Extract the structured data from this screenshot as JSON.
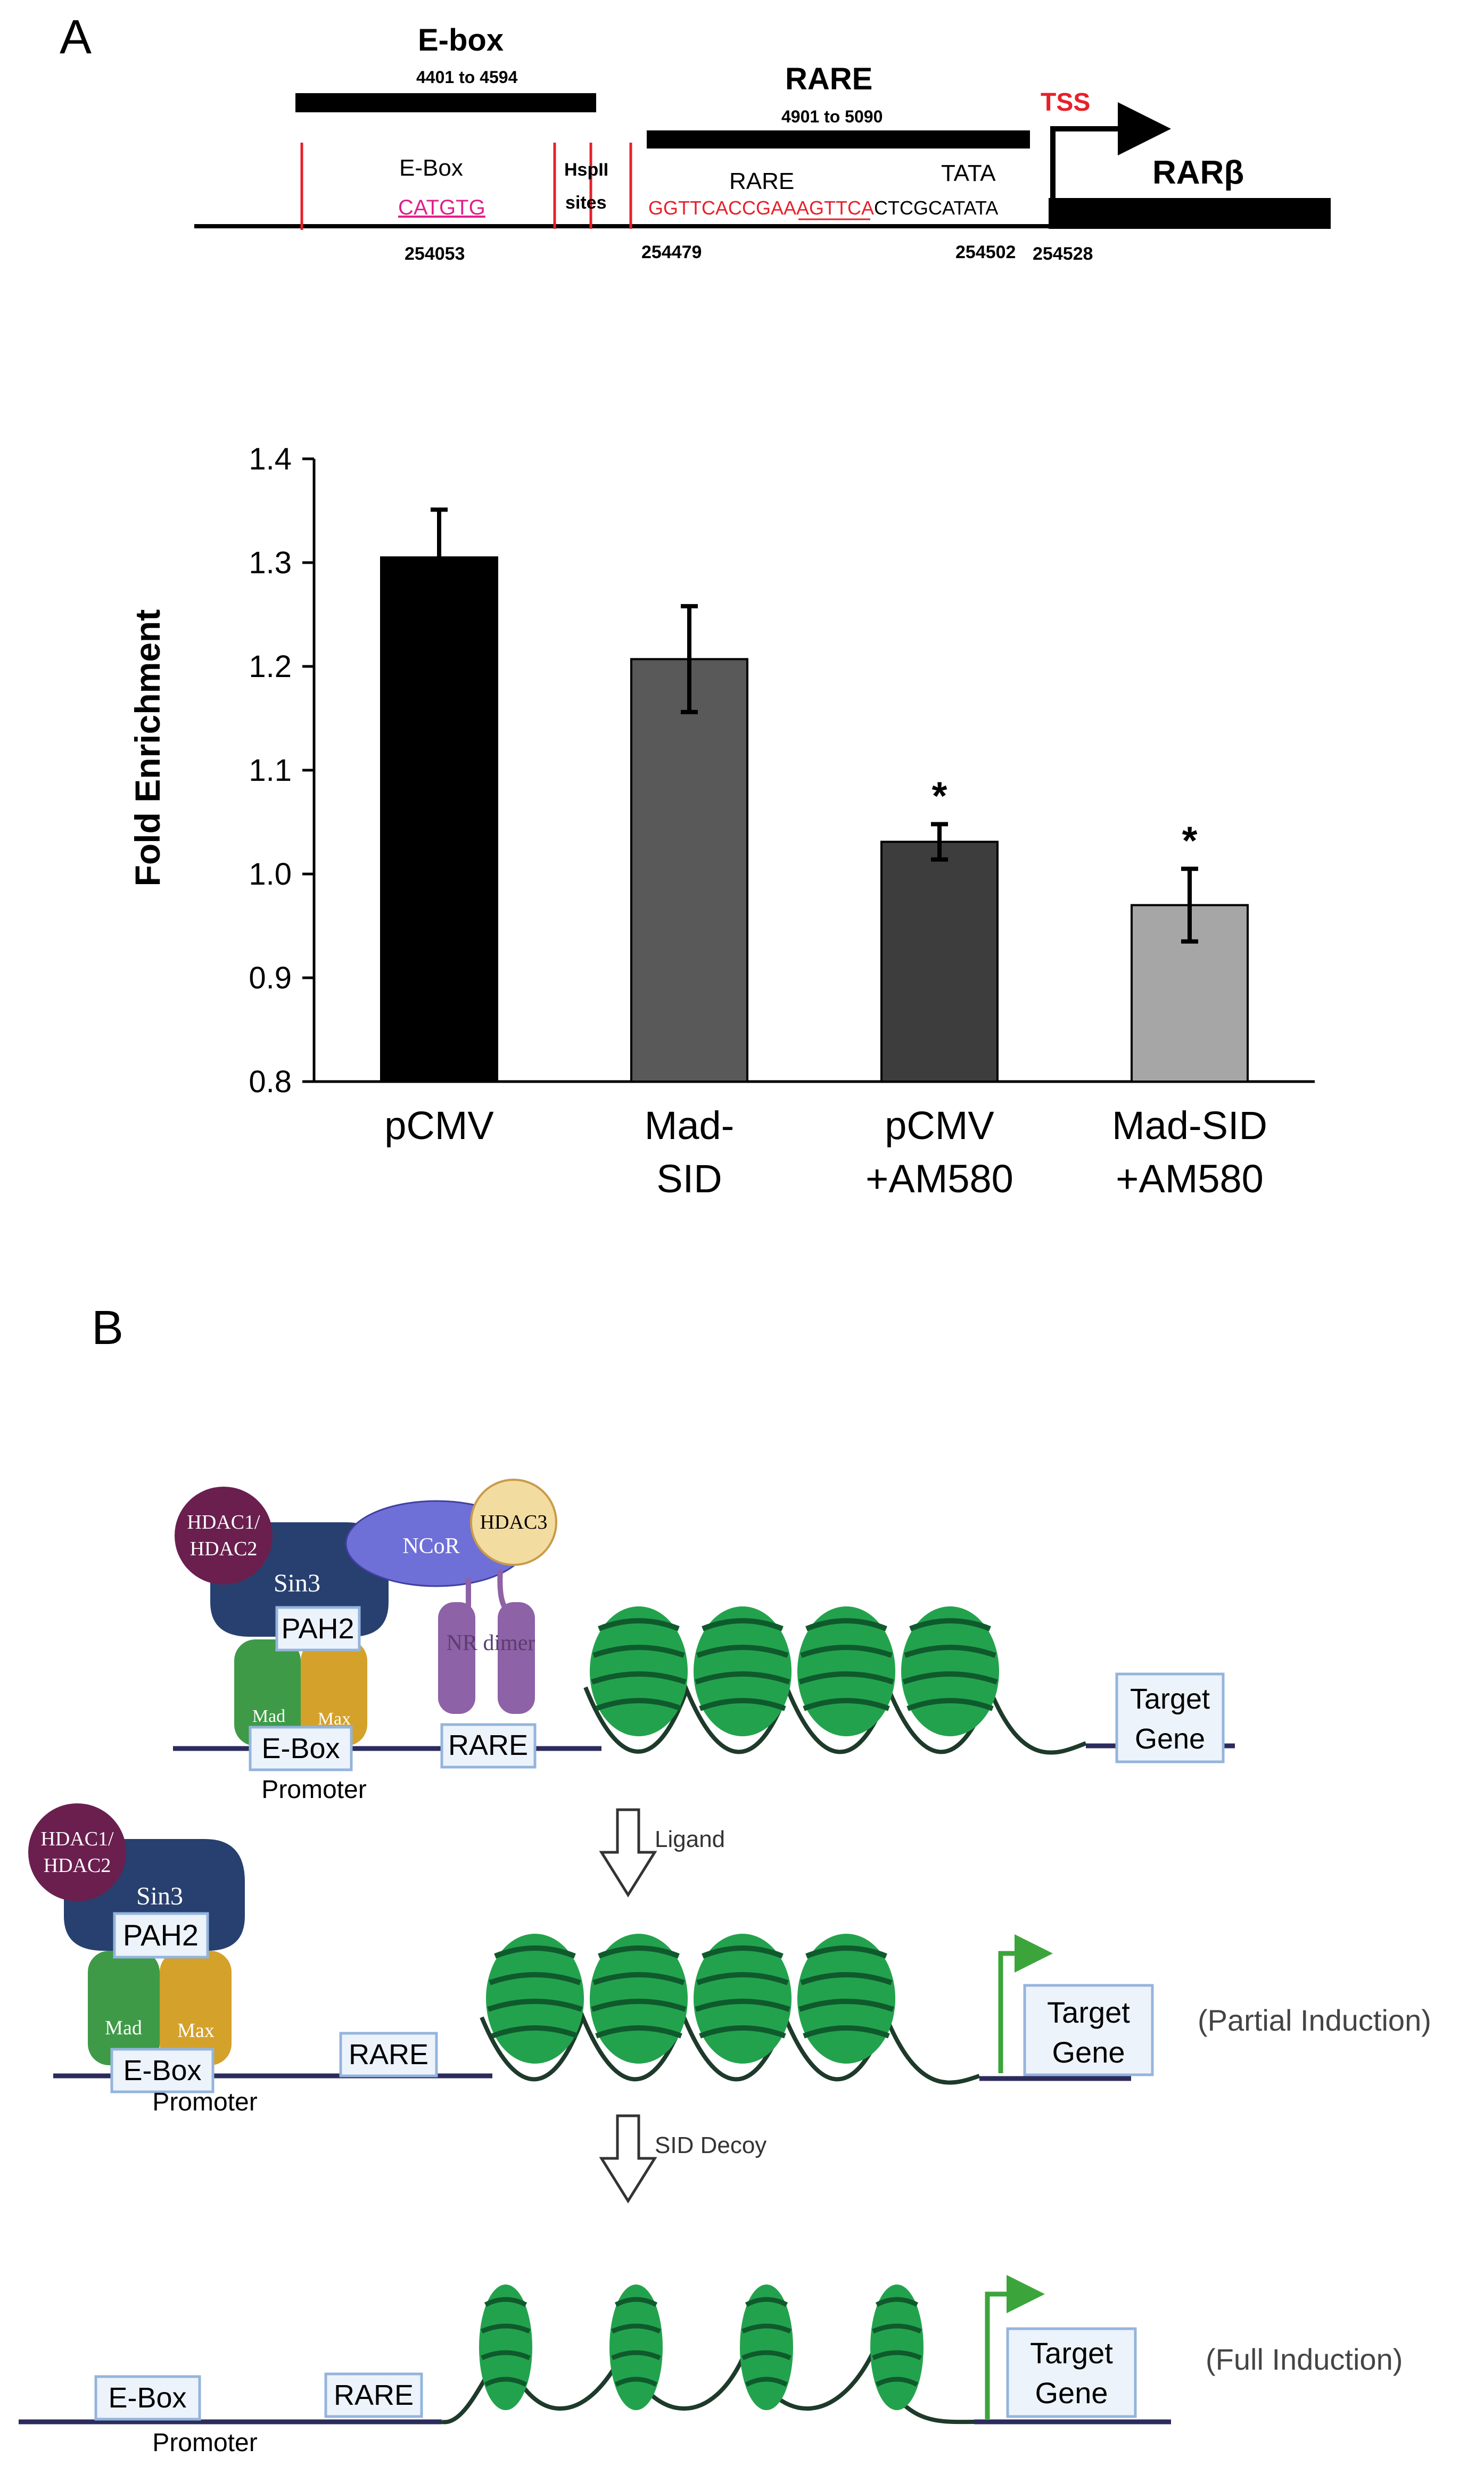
{
  "panel_a": {
    "label": "A",
    "map": {
      "ebox_region": {
        "title": "E-box",
        "range": "4401 to 4594"
      },
      "rare_region": {
        "title": "RARE",
        "range": "4901 to 5090"
      },
      "tss_label": "TSS",
      "gene_label": "RARβ",
      "ebox_site_label": "E-Box",
      "ebox_sequence": "CATGTG",
      "hspii_label_line1": "HspII",
      "hspii_label_line2": "sites",
      "rare_site_label": "RARE",
      "tata_label": "TATA",
      "rare_sequence_red": "GGTTCACCGAAAGTTCA",
      "rare_sequence_black": "CTCGCATATA",
      "positions": [
        "254053",
        "254479",
        "254502",
        "254528"
      ]
    }
  },
  "chart_data": {
    "type": "bar",
    "title": "",
    "xlabel": "",
    "ylabel": "Fold Enrichment",
    "ylim": [
      0.8,
      1.4
    ],
    "yticks": [
      "0.8",
      "0.9",
      "1.0",
      "1.1",
      "1.2",
      "1.3",
      "1.4"
    ],
    "categories": [
      {
        "line1": "pCMV",
        "line2": ""
      },
      {
        "line1": "Mad-",
        "line2": "SID"
      },
      {
        "line1": "pCMV",
        "line2": "+AM580"
      },
      {
        "line1": "Mad-SID",
        "line2": "+AM580"
      }
    ],
    "values": [
      1.305,
      1.207,
      1.031,
      0.97
    ],
    "errors": [
      0.046,
      0.051,
      0.017,
      0.035
    ],
    "significance": [
      "",
      "",
      "*",
      "*"
    ],
    "colors": [
      "#000000",
      "#595959",
      "#3d3d3d",
      "#a6a6a6"
    ],
    "grid": false,
    "legend": "none"
  },
  "panel_b": {
    "label": "B",
    "state1": {
      "hdac12_line1": "HDAC1/",
      "hdac12_line2": "HDAC2",
      "sin3": "Sin3",
      "pah2": "PAH2",
      "ncor": "NCoR",
      "hdac3": "HDAC3",
      "nr_dimer": "NR dimer",
      "mad": "Mad",
      "max": "Max",
      "ebox": "E-Box",
      "promoter": "Promoter",
      "rare": "RARE",
      "target_line1": "Target",
      "target_line2": "Gene"
    },
    "arrow1_label": "Ligand",
    "state2": {
      "hdac12_line1": "HDAC1/",
      "hdac12_line2": "HDAC2",
      "sin3": "Sin3",
      "pah2": "PAH2",
      "mad": "Mad",
      "max": "Max",
      "ebox": "E-Box",
      "promoter": "Promoter",
      "rare": "RARE",
      "target_line1": "Target",
      "target_line2": "Gene",
      "caption": "(Partial Induction)"
    },
    "arrow2_label": "SID Decoy",
    "state3": {
      "ebox": "E-Box",
      "promoter": "Promoter",
      "rare": "RARE",
      "target_line1": "Target",
      "target_line2": "Gene",
      "caption": "(Full Induction)"
    },
    "colors": {
      "hdac12": "#6a1f4f",
      "sin3": "#27406f",
      "ncor": "#6f6fd8",
      "hdac3": "#f3dca0",
      "mad": "#3e9a47",
      "max": "#d4a12a",
      "nr": "#8e62a6",
      "nucleosome": "#23a24d",
      "dna": "#2b2b5c",
      "arrow_green": "#3ba53b",
      "box_fill": "#edf3fb",
      "box_stroke": "#94b4dc"
    }
  }
}
